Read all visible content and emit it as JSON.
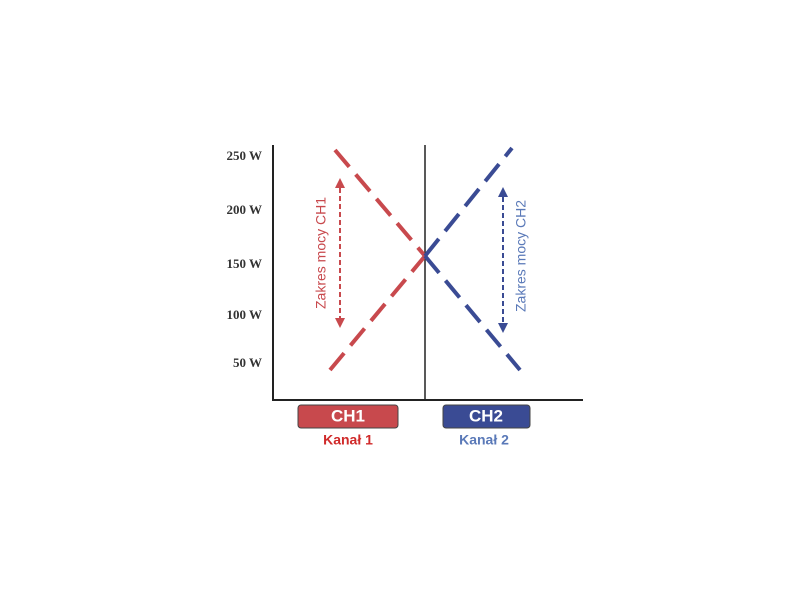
{
  "y_axis": {
    "labels": [
      "250 W",
      "200 W",
      "150 W",
      "100 W",
      "50 W"
    ]
  },
  "channels": [
    {
      "badge": "CH1",
      "name": "Kanał 1",
      "range_label": "Zakres mocy CH1"
    },
    {
      "badge": "CH2",
      "name": "Kanał 2",
      "range_label": "Zakres mocy CH2"
    }
  ]
}
